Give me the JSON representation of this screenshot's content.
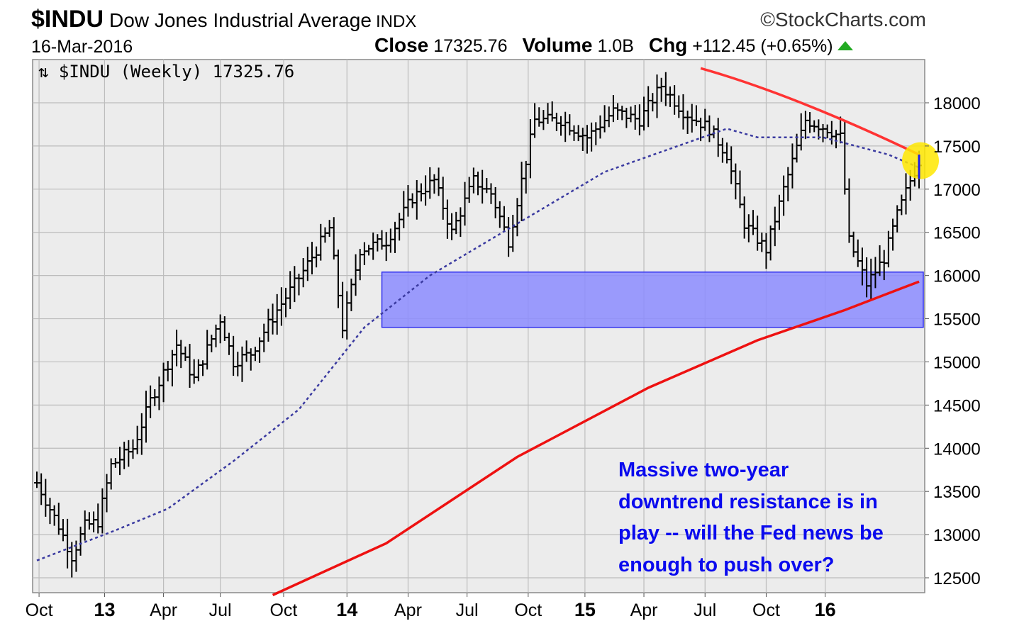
{
  "header": {
    "symbol": "$INDU",
    "name": "Dow Jones Industrial Average",
    "exchange": "INDX",
    "brand": "©StockCharts.com",
    "date": "16-Mar-2016",
    "close_label": "Close",
    "close_value": "17325.76",
    "volume_label": "Volume",
    "volume_value": "1.0B",
    "chg_label": "Chg",
    "chg_value": "+112.45 (+0.65%)"
  },
  "legend": {
    "icon": "price-bars-icon",
    "text": "$INDU (Weekly) 17325.76"
  },
  "annotation": {
    "text": "Massive two-year\ndowntrend resistance is in\nplay -- will the Fed news be\nenough to push over?"
  },
  "colors": {
    "plot_bg": "#ececec",
    "grid": "#bdbdbd",
    "bars": "#000000",
    "ma_short": "#3a3aa0",
    "ma_long": "#ee1111",
    "trendline": "#ff3333",
    "support_zone": "#8c8cff",
    "support_border": "#3030ee",
    "highlight": "#ffe800",
    "note_text": "#0a0aee",
    "up_arrow": "#22aa22"
  },
  "chart_data": {
    "type": "ohlc",
    "title": "$INDU (Weekly) 17325.76",
    "period": "weekly",
    "x_ticks": [
      "Oct",
      "13",
      "Apr",
      "Jul",
      "Oct",
      "14",
      "Apr",
      "Jul",
      "Oct",
      "15",
      "Apr",
      "Jul",
      "Oct",
      "16"
    ],
    "y_ticks": [
      12500,
      13000,
      13500,
      14000,
      14500,
      15000,
      15500,
      16000,
      16500,
      17000,
      17500,
      18000
    ],
    "ylim": [
      12400,
      18450
    ],
    "close_series": [
      {
        "week": 0,
        "close": 13600
      },
      {
        "week": 5,
        "close": 13100
      },
      {
        "week": 8,
        "close": 12750
      },
      {
        "week": 11,
        "close": 13100
      },
      {
        "week": 14,
        "close": 13150
      },
      {
        "week": 17,
        "close": 13800
      },
      {
        "week": 22,
        "close": 14000
      },
      {
        "week": 26,
        "close": 14550
      },
      {
        "week": 32,
        "close": 15200
      },
      {
        "week": 36,
        "close": 14800
      },
      {
        "week": 42,
        "close": 15500
      },
      {
        "week": 45,
        "close": 15000
      },
      {
        "week": 49,
        "close": 15100
      },
      {
        "week": 55,
        "close": 15600
      },
      {
        "week": 61,
        "close": 16050
      },
      {
        "week": 67,
        "close": 16550
      },
      {
        "week": 70,
        "close": 15400
      },
      {
        "week": 74,
        "close": 16300
      },
      {
        "week": 80,
        "close": 16400
      },
      {
        "week": 86,
        "close": 16900
      },
      {
        "week": 91,
        "close": 17100
      },
      {
        "week": 95,
        "close": 16500
      },
      {
        "week": 100,
        "close": 17100
      },
      {
        "week": 104,
        "close": 16950
      },
      {
        "week": 108,
        "close": 16400
      },
      {
        "week": 114,
        "close": 17800
      },
      {
        "week": 120,
        "close": 17800
      },
      {
        "week": 126,
        "close": 17600
      },
      {
        "week": 132,
        "close": 17900
      },
      {
        "week": 138,
        "close": 17800
      },
      {
        "week": 143,
        "close": 18200
      },
      {
        "week": 148,
        "close": 17900
      },
      {
        "week": 154,
        "close": 17700
      },
      {
        "week": 158,
        "close": 17400
      },
      {
        "week": 162,
        "close": 16600
      },
      {
        "week": 167,
        "close": 16300
      },
      {
        "week": 171,
        "close": 17000
      },
      {
        "week": 176,
        "close": 17800
      },
      {
        "week": 181,
        "close": 17700
      },
      {
        "week": 184,
        "close": 17600
      },
      {
        "week": 186,
        "close": 16400
      },
      {
        "week": 190,
        "close": 15900
      },
      {
        "week": 194,
        "close": 16200
      },
      {
        "week": 197,
        "close": 16700
      },
      {
        "week": 200,
        "close": 17100
      },
      {
        "week": 202,
        "close": 17325.76
      }
    ],
    "ma_short": {
      "points": [
        {
          "week": 0,
          "value": 12700
        },
        {
          "week": 18,
          "value": 13050
        },
        {
          "week": 30,
          "value": 13300
        },
        {
          "week": 45,
          "value": 13850
        },
        {
          "week": 60,
          "value": 14450
        },
        {
          "week": 75,
          "value": 15400
        },
        {
          "week": 90,
          "value": 16000
        },
        {
          "week": 110,
          "value": 16600
        },
        {
          "week": 130,
          "value": 17200
        },
        {
          "week": 158,
          "value": 17700
        },
        {
          "week": 165,
          "value": 17600
        },
        {
          "week": 180,
          "value": 17600
        },
        {
          "week": 195,
          "value": 17400
        },
        {
          "week": 202,
          "value": 17250
        }
      ]
    },
    "ma_long": {
      "points": [
        {
          "week": 54,
          "value": 12300
        },
        {
          "week": 80,
          "value": 12900
        },
        {
          "week": 110,
          "value": 13900
        },
        {
          "week": 140,
          "value": 14700
        },
        {
          "week": 165,
          "value": 15250
        },
        {
          "week": 185,
          "value": 15600
        },
        {
          "week": 202,
          "value": 15930
        }
      ]
    },
    "trendline": {
      "points": [
        {
          "week": 152,
          "value": 18400
        },
        {
          "week": 175,
          "value": 18000
        },
        {
          "week": 190,
          "value": 17800
        },
        {
          "week": 202,
          "value": 17400
        }
      ]
    },
    "support_zone": {
      "week_start": 79,
      "week_end": 202,
      "low": 15400,
      "high": 16040
    },
    "highlight": {
      "week": 202,
      "value": 17330
    }
  }
}
